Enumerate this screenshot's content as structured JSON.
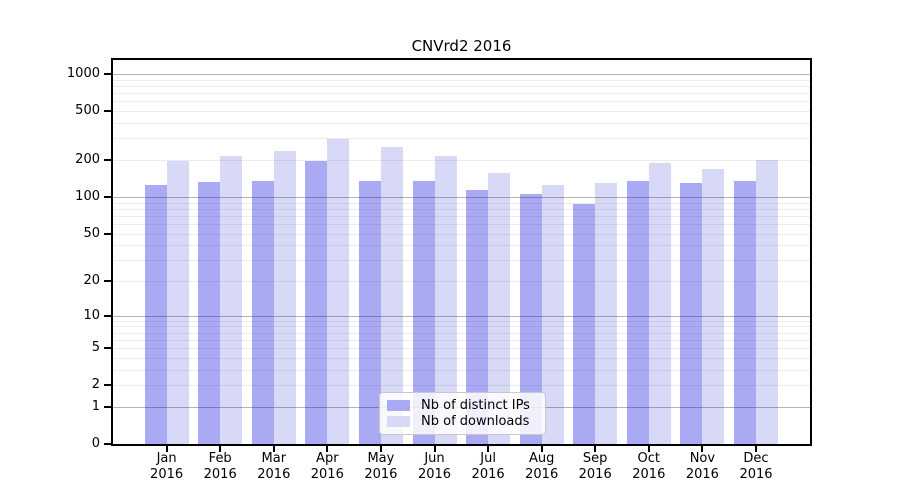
{
  "chart_data": {
    "type": "bar",
    "title": "CNVrd2 2016",
    "categories": [
      "Jan",
      "Feb",
      "Mar",
      "Apr",
      "May",
      "Jun",
      "Jul",
      "Aug",
      "Sep",
      "Oct",
      "Nov",
      "Dec"
    ],
    "year_label": "2016",
    "series": [
      {
        "name": "Nb of distinct IPs",
        "color": "#a9a9f4",
        "values": [
          125,
          133,
          136,
          196,
          136,
          136,
          113,
          106,
          87,
          134,
          131,
          136
        ]
      },
      {
        "name": "Nb of downloads",
        "color": "#d8d8f7",
        "values": [
          197,
          214,
          236,
          295,
          254,
          214,
          158,
          126,
          130,
          190,
          169,
          200
        ]
      }
    ],
    "yscale": "log10(value+1)",
    "y_ticks": [
      0,
      1,
      2,
      5,
      10,
      20,
      50,
      100,
      200,
      500,
      1000
    ],
    "ylim": [
      0,
      1300
    ],
    "xlabel": "",
    "ylabel": "",
    "grid": {
      "horizontal": true,
      "minor_multiples_per_decade": [
        2,
        3,
        4,
        5,
        6,
        7,
        8,
        9
      ],
      "major_at": [
        1,
        10,
        100,
        1000
      ]
    },
    "legend_position": "inside lower-center",
    "colors": {
      "background": "#ffffff",
      "axis": "#000000",
      "major_grid": "#b9b9b9",
      "minor_grid": "#ebebee",
      "legend_border": "#c9c9c9"
    }
  }
}
